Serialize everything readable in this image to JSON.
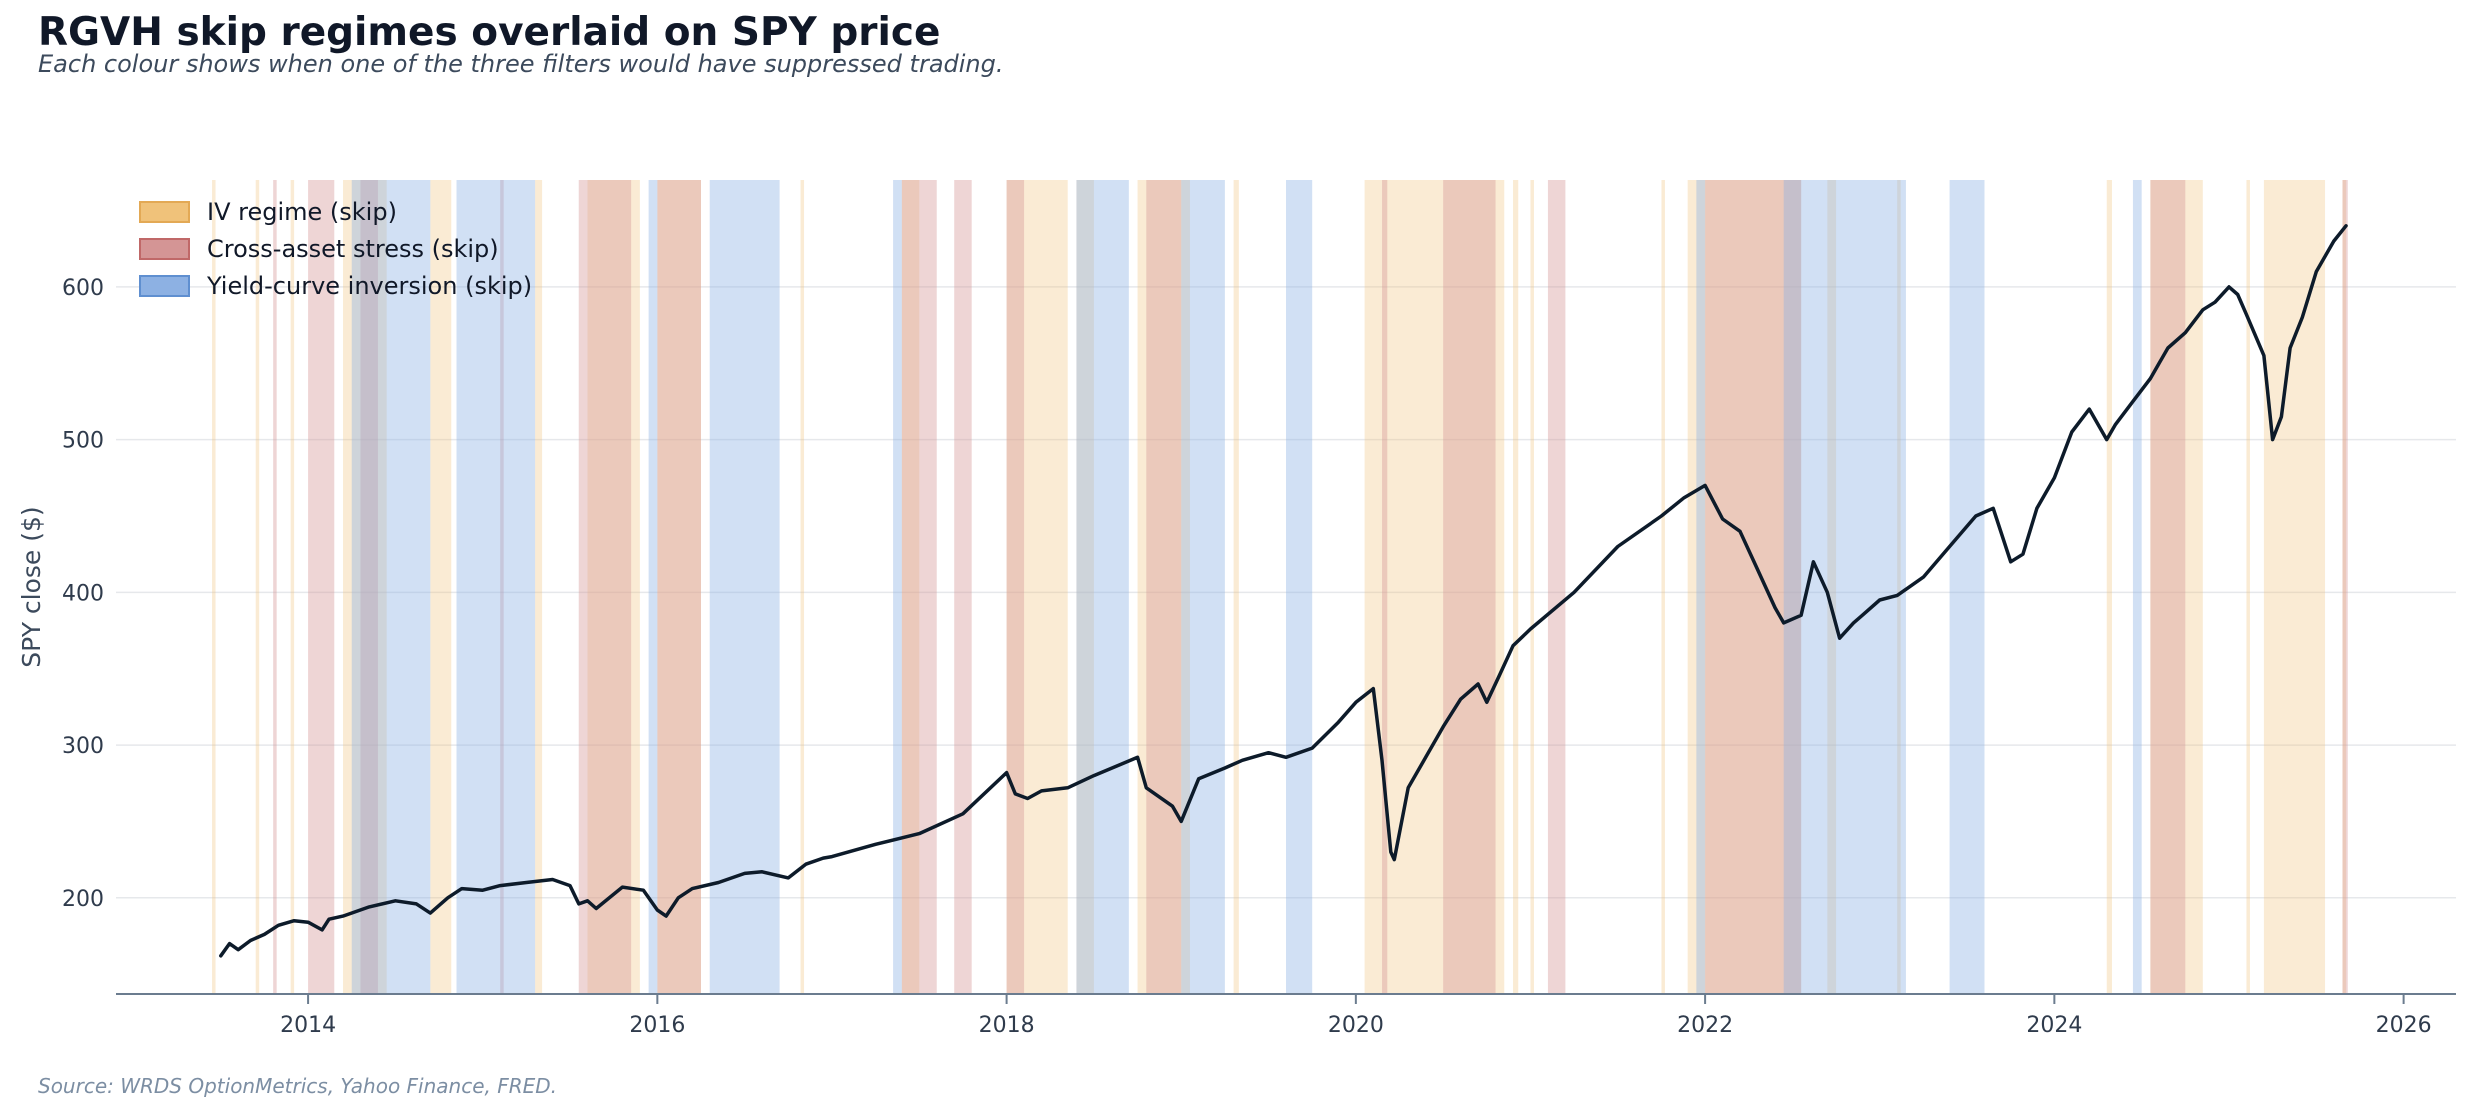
{
  "chart_data": {
    "type": "line",
    "title": "RGVH skip regimes overlaid on SPY price",
    "subtitle": "Each colour shows when one of the three filters would have suppressed trading.",
    "source": "Source: WRDS OptionMetrics, Yahoo Finance, FRED.",
    "xlabel": "",
    "ylabel": "SPY close  ($)",
    "xlim": [
      2012.9,
      2026.3
    ],
    "ylim": [
      137,
      670
    ],
    "x_ticks": [
      2014,
      2016,
      2018,
      2020,
      2022,
      2024,
      2026
    ],
    "y_ticks": [
      200,
      300,
      400,
      500,
      600
    ],
    "grid": "horizontal",
    "legend_position": "top-left",
    "colors": {
      "line": "#0d1b2a",
      "iv": "#f0c27a",
      "stress": "#d49595",
      "curve": "#8db1e3",
      "axis": "#6b7c8f",
      "grid": "#e6e8eb"
    },
    "legend": [
      {
        "label": "IV regime  (skip)",
        "color": "#f0c27a",
        "edge": "#e3a955"
      },
      {
        "label": "Cross-asset stress  (skip)",
        "color": "#d49595",
        "edge": "#c06868"
      },
      {
        "label": "Yield-curve inversion  (skip)",
        "color": "#8db1e3",
        "edge": "#5f8fd0"
      }
    ],
    "regimes": {
      "iv": [
        [
          2013.45,
          2013.47
        ],
        [
          2013.7,
          2013.72
        ],
        [
          2013.9,
          2013.92
        ],
        [
          2014.2,
          2014.45
        ],
        [
          2014.7,
          2014.82
        ],
        [
          2015.3,
          2015.34
        ],
        [
          2015.6,
          2015.9
        ],
        [
          2016.0,
          2016.25
        ],
        [
          2016.82,
          2016.84
        ],
        [
          2017.4,
          2017.5
        ],
        [
          2018.0,
          2018.35
        ],
        [
          2018.4,
          2018.5
        ],
        [
          2018.75,
          2019.05
        ],
        [
          2019.3,
          2019.33
        ],
        [
          2020.05,
          2020.85
        ],
        [
          2020.9,
          2020.93
        ],
        [
          2021.0,
          2021.02
        ],
        [
          2021.75,
          2021.77
        ],
        [
          2021.9,
          2022.55
        ],
        [
          2022.7,
          2022.75
        ],
        [
          2023.1,
          2023.12
        ],
        [
          2024.3,
          2024.33
        ],
        [
          2024.55,
          2024.85
        ],
        [
          2025.1,
          2025.12
        ],
        [
          2025.2,
          2025.55
        ],
        [
          2025.65,
          2025.67
        ]
      ],
      "stress": [
        [
          2013.8,
          2013.82
        ],
        [
          2014.0,
          2014.15
        ],
        [
          2014.3,
          2014.4
        ],
        [
          2015.1,
          2015.12
        ],
        [
          2015.55,
          2015.85
        ],
        [
          2016.0,
          2016.25
        ],
        [
          2017.4,
          2017.6
        ],
        [
          2017.7,
          2017.8
        ],
        [
          2018.0,
          2018.1
        ],
        [
          2018.8,
          2019.0
        ],
        [
          2020.15,
          2020.18
        ],
        [
          2020.5,
          2020.8
        ],
        [
          2021.1,
          2021.2
        ],
        [
          2022.0,
          2022.55
        ],
        [
          2024.55,
          2024.75
        ],
        [
          2025.65,
          2025.68
        ]
      ],
      "curve": [
        [
          2014.25,
          2014.7
        ],
        [
          2014.85,
          2015.3
        ],
        [
          2015.95,
          2016.0
        ],
        [
          2016.3,
          2016.7
        ],
        [
          2017.35,
          2017.4
        ],
        [
          2018.4,
          2018.7
        ],
        [
          2019.0,
          2019.25
        ],
        [
          2019.6,
          2019.75
        ],
        [
          2021.95,
          2022.0
        ],
        [
          2022.45,
          2023.15
        ],
        [
          2023.4,
          2023.6
        ],
        [
          2024.45,
          2024.5
        ]
      ]
    },
    "series": [
      {
        "x": [
          2013.5,
          2013.55,
          2013.6,
          2013.67,
          2013.75,
          2013.83,
          2013.92,
          2014.0,
          2014.08,
          2014.12,
          2014.2,
          2014.35,
          2014.5,
          2014.62,
          2014.7,
          2014.8,
          2014.88,
          2015.0,
          2015.1,
          2015.25,
          2015.4,
          2015.5,
          2015.55,
          2015.6,
          2015.65,
          2015.8,
          2015.92,
          2016.0,
          2016.05,
          2016.12,
          2016.2,
          2016.35,
          2016.5,
          2016.6,
          2016.75,
          2016.85,
          2016.95,
          2017.0,
          2017.25,
          2017.5,
          2017.75,
          2018.0,
          2018.05,
          2018.12,
          2018.2,
          2018.35,
          2018.5,
          2018.75,
          2018.8,
          2018.95,
          2019.0,
          2019.1,
          2019.25,
          2019.35,
          2019.5,
          2019.6,
          2019.75,
          2019.9,
          2020.0,
          2020.1,
          2020.15,
          2020.2,
          2020.22,
          2020.3,
          2020.4,
          2020.5,
          2020.6,
          2020.7,
          2020.75,
          2020.82,
          2020.9,
          2021.0,
          2021.25,
          2021.5,
          2021.75,
          2021.88,
          2022.0,
          2022.1,
          2022.2,
          2022.3,
          2022.4,
          2022.45,
          2022.55,
          2022.62,
          2022.7,
          2022.77,
          2022.85,
          2022.9,
          2023.0,
          2023.1,
          2023.25,
          2023.4,
          2023.55,
          2023.65,
          2023.75,
          2023.82,
          2023.9,
          2024.0,
          2024.1,
          2024.2,
          2024.3,
          2024.35,
          2024.45,
          2024.55,
          2024.6,
          2024.65,
          2024.75,
          2024.85,
          2024.92,
          2025.0,
          2025.05,
          2025.1,
          2025.2,
          2025.25,
          2025.3,
          2025.35,
          2025.42,
          2025.5,
          2025.6,
          2025.67
        ],
        "values": [
          162,
          170,
          166,
          172,
          176,
          182,
          185,
          184,
          179,
          186,
          188,
          194,
          198,
          196,
          190,
          200,
          206,
          205,
          208,
          210,
          212,
          208,
          196,
          198,
          193,
          207,
          205,
          192,
          188,
          200,
          206,
          210,
          216,
          217,
          213,
          222,
          226,
          227,
          235,
          242,
          255,
          282,
          268,
          265,
          270,
          272,
          280,
          292,
          272,
          260,
          250,
          278,
          285,
          290,
          295,
          292,
          298,
          315,
          328,
          337,
          290,
          230,
          225,
          272,
          292,
          312,
          330,
          340,
          328,
          345,
          365,
          376,
          400,
          430,
          450,
          462,
          470,
          448,
          440,
          415,
          390,
          380,
          385,
          420,
          400,
          370,
          380,
          385,
          395,
          398,
          410,
          430,
          450,
          455,
          420,
          425,
          455,
          475,
          505,
          520,
          500,
          510,
          525,
          540,
          550,
          560,
          570,
          585,
          590,
          600,
          595,
          582,
          555,
          500,
          515,
          560,
          580,
          610,
          630,
          640
        ]
      }
    ]
  }
}
